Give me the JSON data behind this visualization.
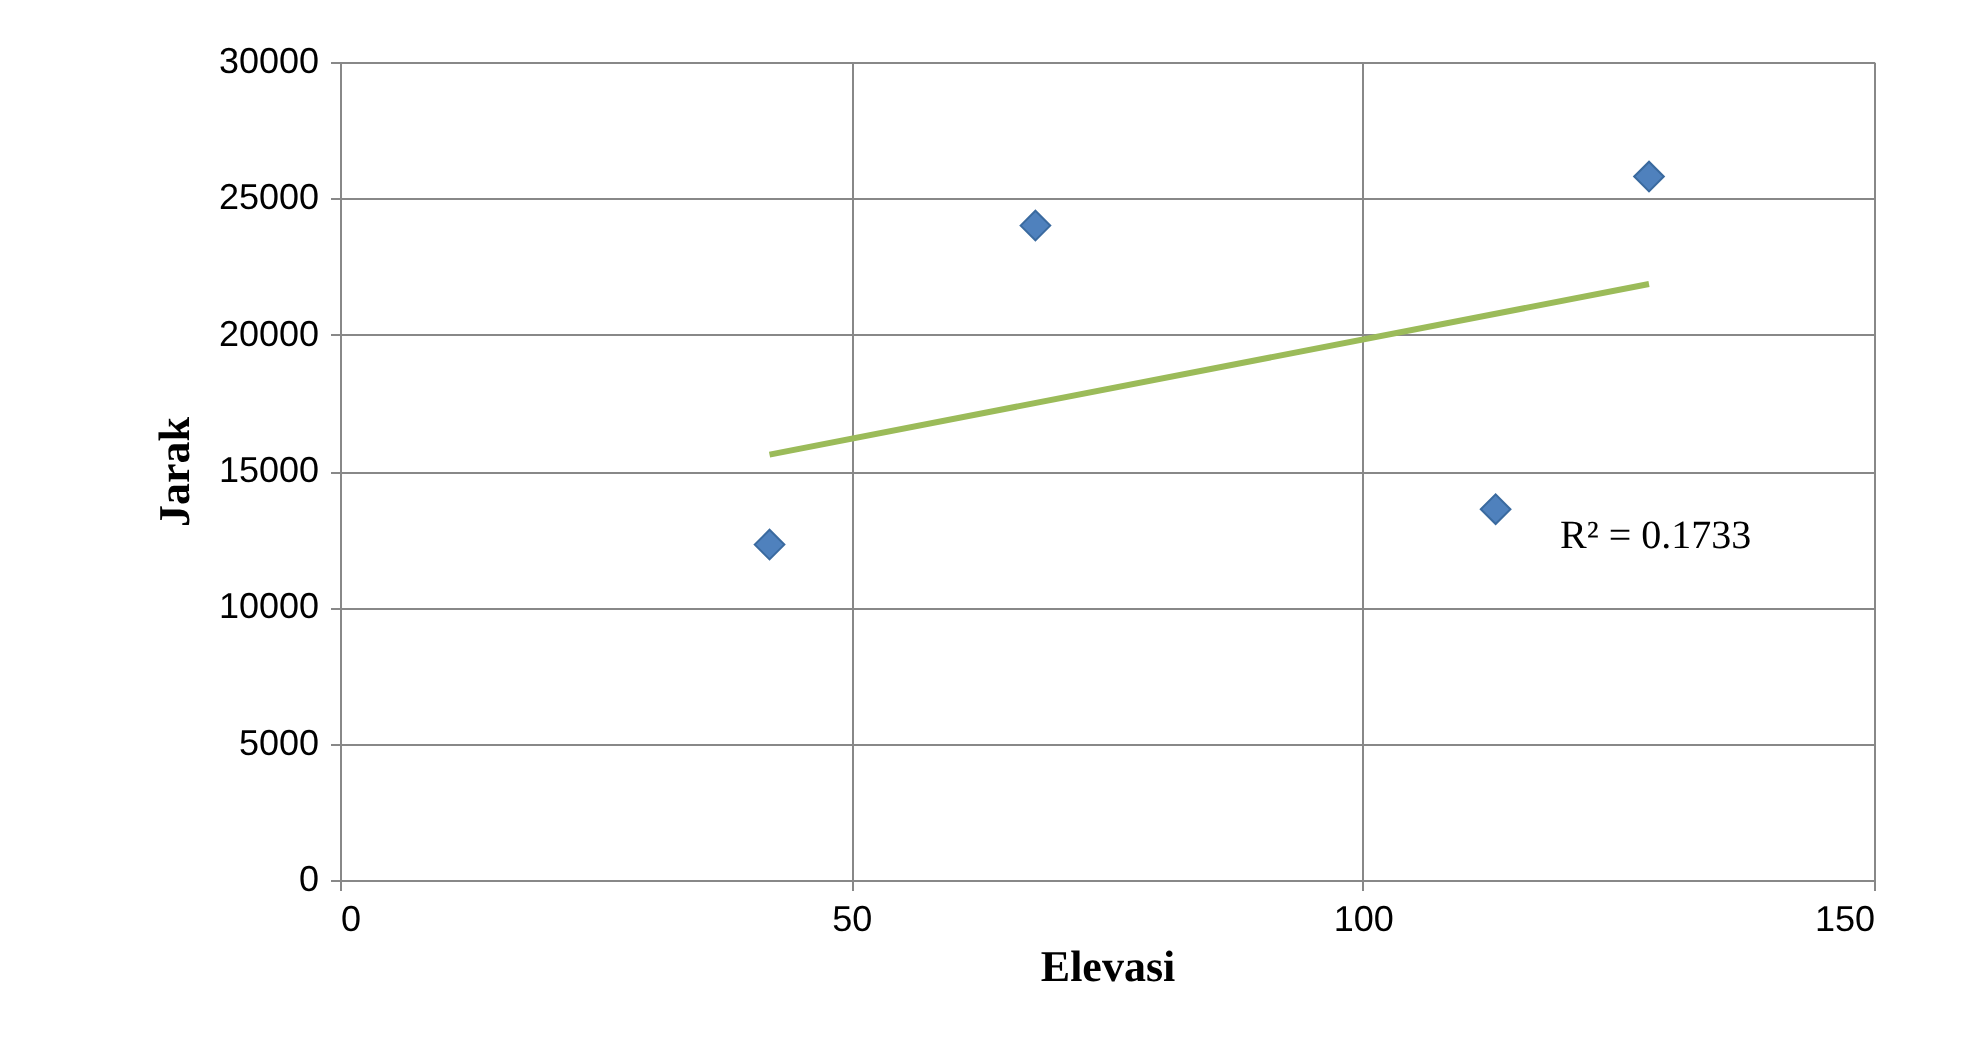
{
  "chart_data": {
    "type": "scatter",
    "xlabel": "Elevasi",
    "ylabel": "Jarak",
    "xlim": [
      0,
      150
    ],
    "xticks": [
      0,
      50,
      100,
      150
    ],
    "ylim": [
      0,
      30000
    ],
    "yticks": [
      0,
      5000,
      10000,
      15000,
      20000,
      25000,
      30000
    ],
    "grid": true,
    "marker": "diamond",
    "series": [
      {
        "color": "#4f81bd",
        "x": [
          42,
          68,
          113,
          128
        ],
        "values": [
          12300,
          24000,
          13600,
          25800
        ]
      },
      {
        "type": "line",
        "marker": "none",
        "line_style": "solid",
        "color": "#9bbb59",
        "x": [
          42,
          128
        ],
        "values": [
          15600,
          21860
        ]
      }
    ],
    "annotations": [
      "R² = 0.1733"
    ]
  }
}
